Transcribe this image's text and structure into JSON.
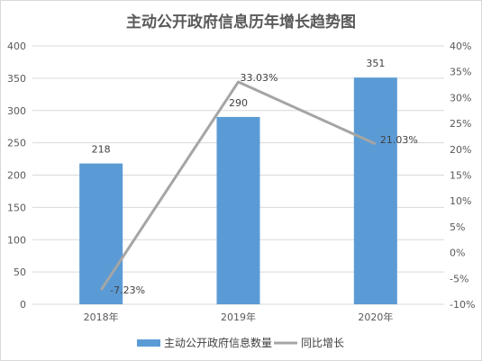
{
  "chart_data": {
    "type": "bar",
    "title": "主动公开政府信息历年增长趋势图",
    "categories": [
      "2018年",
      "2019年",
      "2020年"
    ],
    "series": [
      {
        "name": "主动公开政府信息数量",
        "type": "bar",
        "axis": "left",
        "values": [
          218,
          290,
          351
        ],
        "labels": [
          "218",
          "290",
          "351"
        ],
        "color": "#5b9bd5"
      },
      {
        "name": "同比增长",
        "type": "line",
        "axis": "right",
        "values": [
          -7.23,
          33.03,
          21.03
        ],
        "labels": [
          "-7.23%",
          "33.03%",
          "21.03%"
        ],
        "color": "#a5a5a5"
      }
    ],
    "y_left": {
      "min": 0,
      "max": 400,
      "step": 50,
      "ticks": [
        "0",
        "50",
        "100",
        "150",
        "200",
        "250",
        "300",
        "350",
        "400"
      ]
    },
    "y_right": {
      "min": -10,
      "max": 40,
      "step": 5,
      "ticks": [
        "-10%",
        "-5%",
        "0%",
        "5%",
        "10%",
        "15%",
        "20%",
        "25%",
        "30%",
        "35%",
        "40%"
      ]
    },
    "grid": true,
    "legend_position": "bottom"
  }
}
